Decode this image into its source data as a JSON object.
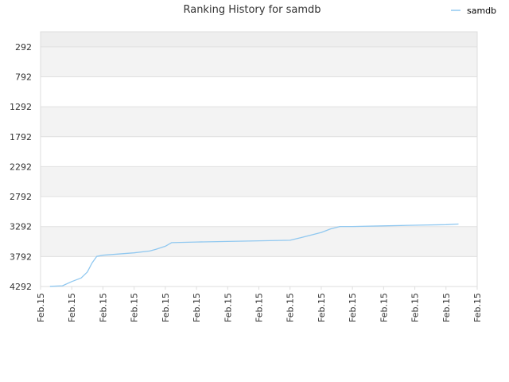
{
  "chart_data": {
    "type": "line",
    "title": "Ranking History for samdb",
    "xlabel": "",
    "ylabel": "",
    "y_reversed": true,
    "grid": true,
    "legend_position": "top-right",
    "ylim": [
      4292,
      42
    ],
    "y_ticks": [
      "292",
      "792",
      "1292",
      "1792",
      "2292",
      "2792",
      "3292",
      "3792",
      "4292"
    ],
    "x_ticks": [
      "Feb.15",
      "Feb.15",
      "Feb.15",
      "Feb.15",
      "Feb.15",
      "Feb.15",
      "Feb.15",
      "Feb.15",
      "Feb.15",
      "Feb.15",
      "Feb.15",
      "Feb.15",
      "Feb.15",
      "Feb.15",
      "Feb.15"
    ],
    "xlim": [
      0,
      14
    ],
    "series": [
      {
        "name": "samdb",
        "color": "#90c8f0",
        "x": [
          0.3,
          0.7,
          1.0,
          1.3,
          1.5,
          1.65,
          1.8,
          2.0,
          2.5,
          3.0,
          3.5,
          3.7,
          4.0,
          4.2,
          5.0,
          6.0,
          7.0,
          8.0,
          8.4,
          9.0,
          9.3,
          9.6,
          10.0,
          11.0,
          12.0,
          13.0,
          13.4
        ],
        "values": [
          4290,
          4280,
          4210,
          4150,
          4050,
          3900,
          3790,
          3770,
          3750,
          3730,
          3700,
          3670,
          3620,
          3560,
          3550,
          3540,
          3530,
          3520,
          3470,
          3390,
          3330,
          3290,
          3290,
          3280,
          3270,
          3260,
          3250
        ]
      }
    ]
  }
}
